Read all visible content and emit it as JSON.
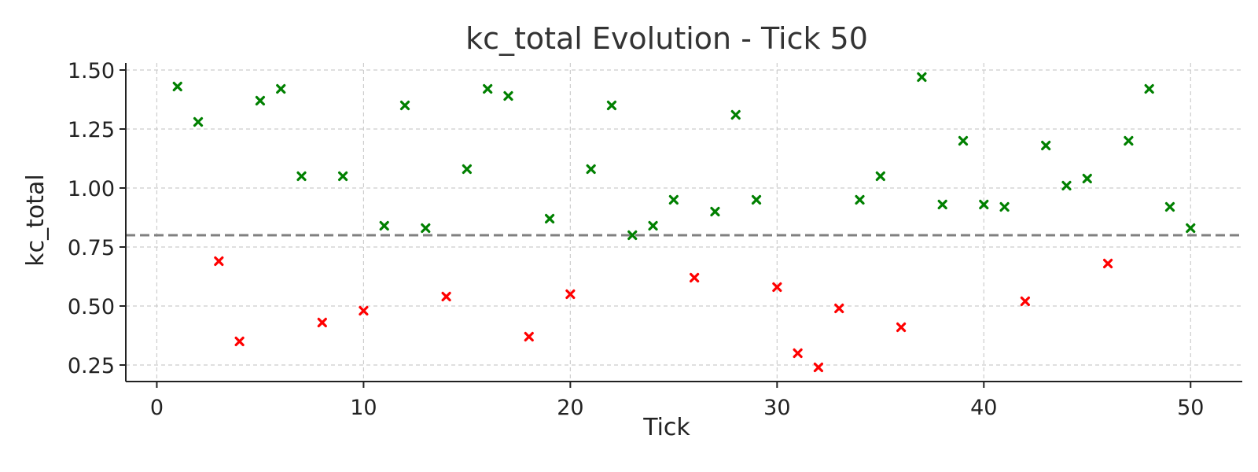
{
  "chart_data": {
    "type": "scatter",
    "title": "kc_total Evolution - Tick 50",
    "xlabel": "Tick",
    "ylabel": "kc_total",
    "xlim": [
      -1.5,
      52.5
    ],
    "ylim": [
      0.18,
      1.53
    ],
    "x_ticks": [
      0,
      10,
      20,
      30,
      40,
      50
    ],
    "y_ticks": [
      0.25,
      0.5,
      0.75,
      1.0,
      1.25,
      1.5
    ],
    "y_tick_labels": [
      "0.25",
      "0.50",
      "0.75",
      "1.00",
      "1.25",
      "1.50"
    ],
    "grid": true,
    "marker": "x",
    "threshold": 0.8,
    "colors": {
      "above": "#008000",
      "below": "#ff0000",
      "threshold": "#808080"
    },
    "points": [
      {
        "x": 1,
        "y": 1.43
      },
      {
        "x": 2,
        "y": 1.28
      },
      {
        "x": 3,
        "y": 0.69
      },
      {
        "x": 4,
        "y": 0.35
      },
      {
        "x": 5,
        "y": 1.37
      },
      {
        "x": 6,
        "y": 1.42
      },
      {
        "x": 7,
        "y": 1.05
      },
      {
        "x": 8,
        "y": 0.43
      },
      {
        "x": 9,
        "y": 1.05
      },
      {
        "x": 10,
        "y": 0.48
      },
      {
        "x": 11,
        "y": 0.84
      },
      {
        "x": 12,
        "y": 1.35
      },
      {
        "x": 13,
        "y": 0.83
      },
      {
        "x": 14,
        "y": 0.54
      },
      {
        "x": 15,
        "y": 1.08
      },
      {
        "x": 16,
        "y": 1.42
      },
      {
        "x": 17,
        "y": 1.39
      },
      {
        "x": 18,
        "y": 0.37
      },
      {
        "x": 19,
        "y": 0.87
      },
      {
        "x": 20,
        "y": 0.55
      },
      {
        "x": 21,
        "y": 1.08
      },
      {
        "x": 22,
        "y": 1.35
      },
      {
        "x": 23,
        "y": 0.8
      },
      {
        "x": 24,
        "y": 0.84
      },
      {
        "x": 25,
        "y": 0.95
      },
      {
        "x": 26,
        "y": 0.62
      },
      {
        "x": 27,
        "y": 0.9
      },
      {
        "x": 28,
        "y": 1.31
      },
      {
        "x": 29,
        "y": 0.95
      },
      {
        "x": 30,
        "y": 0.58
      },
      {
        "x": 31,
        "y": 0.3
      },
      {
        "x": 32,
        "y": 0.24
      },
      {
        "x": 33,
        "y": 0.49
      },
      {
        "x": 34,
        "y": 0.95
      },
      {
        "x": 35,
        "y": 1.05
      },
      {
        "x": 36,
        "y": 0.41
      },
      {
        "x": 37,
        "y": 1.47
      },
      {
        "x": 38,
        "y": 0.93
      },
      {
        "x": 39,
        "y": 1.2
      },
      {
        "x": 40,
        "y": 0.93
      },
      {
        "x": 41,
        "y": 0.92
      },
      {
        "x": 42,
        "y": 0.52
      },
      {
        "x": 43,
        "y": 1.18
      },
      {
        "x": 44,
        "y": 1.01
      },
      {
        "x": 45,
        "y": 1.04
      },
      {
        "x": 46,
        "y": 0.68
      },
      {
        "x": 47,
        "y": 1.2
      },
      {
        "x": 48,
        "y": 1.42
      },
      {
        "x": 49,
        "y": 0.92
      },
      {
        "x": 50,
        "y": 0.83
      }
    ]
  }
}
